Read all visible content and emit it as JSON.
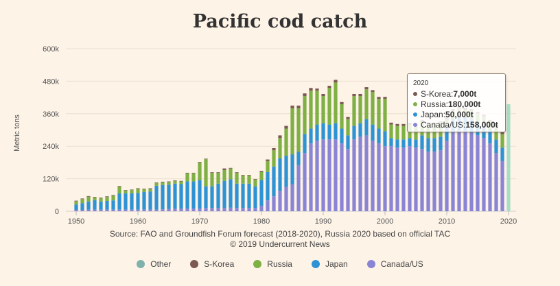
{
  "title": "Pacific cod catch",
  "source_line1": "Source: FAO and Groundfish Forum forecast (2018-2020), Russia 2020 based on official TAC",
  "source_line2": "© 2019 Undercurrent News",
  "colors": {
    "Other": "#7fb2ad",
    "S-Korea": "#7a5a52",
    "Russia": "#7fb043",
    "Japan": "#2e93d4",
    "Canada/US": "#8a84d4",
    "highlight_2020": "#a8dfc4"
  },
  "legend": [
    {
      "name": "Other",
      "color": "#7fb2ad"
    },
    {
      "name": "S-Korea",
      "color": "#7a5a52"
    },
    {
      "name": "Russia",
      "color": "#7fb043"
    },
    {
      "name": "Japan",
      "color": "#2e93d4"
    },
    {
      "name": "Canada/US",
      "color": "#8a84d4"
    }
  ],
  "tooltip": {
    "year": "2020",
    "rows": [
      {
        "label": "S-Korea: ",
        "value": "7,000t",
        "color": "#7a5a52"
      },
      {
        "label": "Russia: ",
        "value": "180,000t",
        "color": "#7fb043"
      },
      {
        "label": "Japan: ",
        "value": "50,000t",
        "color": "#2e93d4"
      },
      {
        "label": "Canada/US: ",
        "value": "158,000t",
        "color": "#8a84d4"
      }
    ]
  },
  "chart_data": {
    "type": "bar",
    "stacked": true,
    "title": "Pacific cod catch",
    "ylabel": "Metric tons",
    "xlabel": "",
    "ylim": [
      0,
      600000
    ],
    "y_ticks": [
      "0",
      "120k",
      "240k",
      "360k",
      "480k",
      "600k"
    ],
    "y_tick_values": [
      0,
      120000,
      240000,
      360000,
      480000,
      600000
    ],
    "x_ticks": [
      "1950",
      "1960",
      "1970",
      "1980",
      "1990",
      "2000",
      "2010",
      "2020"
    ],
    "x_tick_values": [
      1950,
      1960,
      1970,
      1980,
      1990,
      2000,
      2010,
      2020
    ],
    "grid": true,
    "legend_position": "bottom",
    "highlighted_category": 2020,
    "categories": [
      1950,
      1951,
      1952,
      1953,
      1954,
      1955,
      1956,
      1957,
      1958,
      1959,
      1960,
      1961,
      1962,
      1963,
      1964,
      1965,
      1966,
      1967,
      1968,
      1969,
      1970,
      1971,
      1972,
      1973,
      1974,
      1975,
      1976,
      1977,
      1978,
      1979,
      1980,
      1981,
      1982,
      1983,
      1984,
      1985,
      1986,
      1987,
      1988,
      1989,
      1990,
      1991,
      1992,
      1993,
      1994,
      1995,
      1996,
      1997,
      1998,
      1999,
      2000,
      2001,
      2002,
      2003,
      2004,
      2005,
      2006,
      2007,
      2008,
      2009,
      2010,
      2011,
      2012,
      2013,
      2014,
      2015,
      2016,
      2017,
      2018,
      2019,
      2020
    ],
    "series": [
      {
        "name": "Canada/US",
        "values": [
          5000,
          5000,
          6000,
          6000,
          6000,
          6000,
          6000,
          6000,
          6000,
          6000,
          6000,
          6000,
          6000,
          6000,
          7000,
          8000,
          10000,
          10000,
          10000,
          10000,
          10000,
          12000,
          12000,
          12000,
          12000,
          13000,
          12000,
          12000,
          12000,
          12000,
          20000,
          40000,
          55000,
          75000,
          90000,
          100000,
          170000,
          215000,
          250000,
          260000,
          265000,
          265000,
          265000,
          250000,
          230000,
          265000,
          275000,
          280000,
          260000,
          250000,
          240000,
          240000,
          235000,
          235000,
          240000,
          235000,
          230000,
          220000,
          220000,
          225000,
          260000,
          290000,
          300000,
          295000,
          290000,
          280000,
          270000,
          250000,
          215000,
          185000,
          158000
        ]
      },
      {
        "name": "Japan",
        "values": [
          20000,
          25000,
          30000,
          35000,
          30000,
          32000,
          34000,
          60000,
          60000,
          60000,
          62000,
          65000,
          67000,
          88000,
          90000,
          90000,
          92000,
          90000,
          100000,
          100000,
          105000,
          80000,
          80000,
          90000,
          100000,
          105000,
          90000,
          90000,
          90000,
          80000,
          95000,
          105000,
          110000,
          120000,
          115000,
          110000,
          50000,
          70000,
          55000,
          60000,
          60000,
          55000,
          60000,
          55000,
          50000,
          50000,
          50000,
          60000,
          60000,
          55000,
          55000,
          30000,
          30000,
          30000,
          30000,
          30000,
          50000,
          50000,
          50000,
          50000,
          50000,
          50000,
          50000,
          50000,
          50000,
          50000,
          50000,
          50000,
          50000,
          50000,
          50000
        ]
      },
      {
        "name": "Russia",
        "values": [
          12000,
          15000,
          18000,
          10000,
          12000,
          15000,
          18000,
          25000,
          10000,
          12000,
          15000,
          10000,
          10000,
          10000,
          10000,
          10000,
          10000,
          10000,
          30000,
          30000,
          65000,
          100000,
          50000,
          40000,
          40000,
          40000,
          40000,
          30000,
          30000,
          25000,
          30000,
          40000,
          60000,
          75000,
          100000,
          170000,
          160000,
          140000,
          140000,
          125000,
          100000,
          135000,
          150000,
          90000,
          60000,
          110000,
          100000,
          110000,
          120000,
          110000,
          120000,
          50000,
          50000,
          50000,
          50000,
          50000,
          50000,
          50000,
          50000,
          50000,
          30000,
          30000,
          30000,
          30000,
          30000,
          30000,
          30000,
          30000,
          50000,
          50000,
          180000
        ]
      },
      {
        "name": "S-Korea",
        "values": [
          2000,
          2000,
          2000,
          2000,
          2000,
          2000,
          2000,
          2000,
          2000,
          2000,
          2000,
          2000,
          2000,
          2000,
          2000,
          2000,
          2000,
          2000,
          2000,
          2000,
          2000,
          2000,
          2000,
          2000,
          6000,
          2000,
          2000,
          2000,
          2000,
          2000,
          4000,
          6000,
          8000,
          10000,
          10000,
          10000,
          10000,
          10000,
          10000,
          8000,
          8000,
          8000,
          10000,
          8000,
          8000,
          8000,
          8000,
          8000,
          7000,
          7000,
          7000,
          7000,
          7000,
          7000,
          7000,
          7000,
          7000,
          7000,
          7000,
          7000,
          7000,
          7000,
          7000,
          7000,
          7000,
          7000,
          7000,
          7000,
          7000,
          7000,
          7000
        ]
      }
    ]
  }
}
